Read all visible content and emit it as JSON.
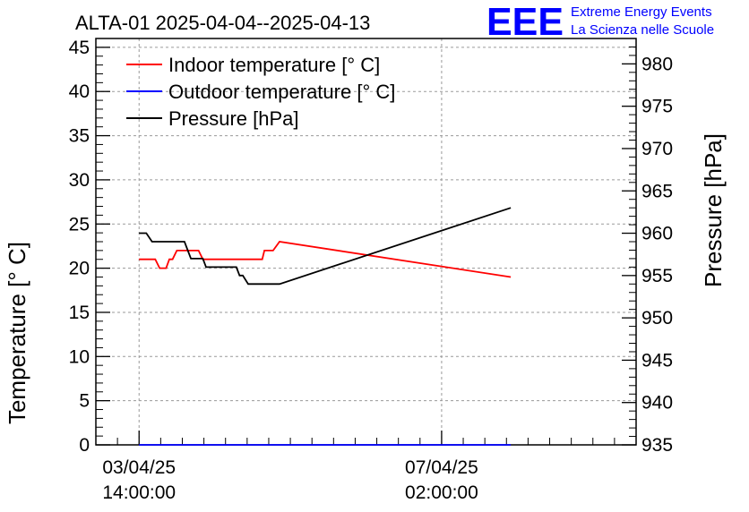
{
  "chart_data": {
    "type": "line",
    "title": "ALTA-01 2025-04-04--2025-04-13",
    "ylabel": "Temperature [° C]",
    "y2label": "Pressure [hPa]",
    "x_tick_labels": [
      {
        "date": "03/04/25",
        "time": "14:00:00",
        "hours": 0
      },
      {
        "date": "07/04/25",
        "time": "02:00:00",
        "hours": 84
      }
    ],
    "xlim_hours": [
      -12,
      138
    ],
    "ylim": [
      0,
      46
    ],
    "y2lim": [
      935,
      983
    ],
    "y_ticks": [
      0,
      5,
      10,
      15,
      20,
      25,
      30,
      35,
      40,
      45
    ],
    "y2_ticks": [
      935,
      940,
      945,
      950,
      955,
      960,
      965,
      970,
      975,
      980
    ],
    "grid": true,
    "legend_position": "top-left",
    "series": [
      {
        "name": "Indoor temperature [° C]",
        "color": "#ff0000",
        "axis": "left",
        "x_hours": [
          0,
          4.5,
          5.7,
          7.5,
          8.4,
          9.3,
          10.5,
          12.6,
          14.4,
          16.5,
          17.7,
          18.6,
          20.4,
          22.5,
          32.4,
          33.6,
          34.2,
          34.8,
          37.2,
          39,
          103.2
        ],
        "values": [
          21,
          21,
          20,
          20,
          21,
          21,
          22,
          22,
          22,
          22,
          21,
          21,
          21,
          21,
          21,
          21,
          21,
          22,
          22,
          23,
          19
        ]
      },
      {
        "name": "Outdoor temperature [° C]",
        "color": "#0000ff",
        "axis": "left",
        "x_hours": [
          0,
          103.2
        ],
        "values": [
          0,
          0
        ]
      },
      {
        "name": "Pressure [hPa]",
        "color": "#000000",
        "axis": "right",
        "x_hours": [
          0,
          2,
          3.6,
          12.6,
          13.5,
          14.4,
          17.7,
          18.6,
          27,
          27.9,
          28.8,
          30.3,
          31.2,
          39,
          103.2
        ],
        "values": [
          960,
          960,
          959,
          959,
          958,
          957,
          957,
          956,
          956,
          955,
          955,
          954,
          954,
          954,
          963
        ]
      }
    ]
  },
  "logo": {
    "mark": "EEE",
    "line1": "Extreme Energy Events",
    "line2": "La Scienza nelle Scuole",
    "color": "#0000ff"
  }
}
